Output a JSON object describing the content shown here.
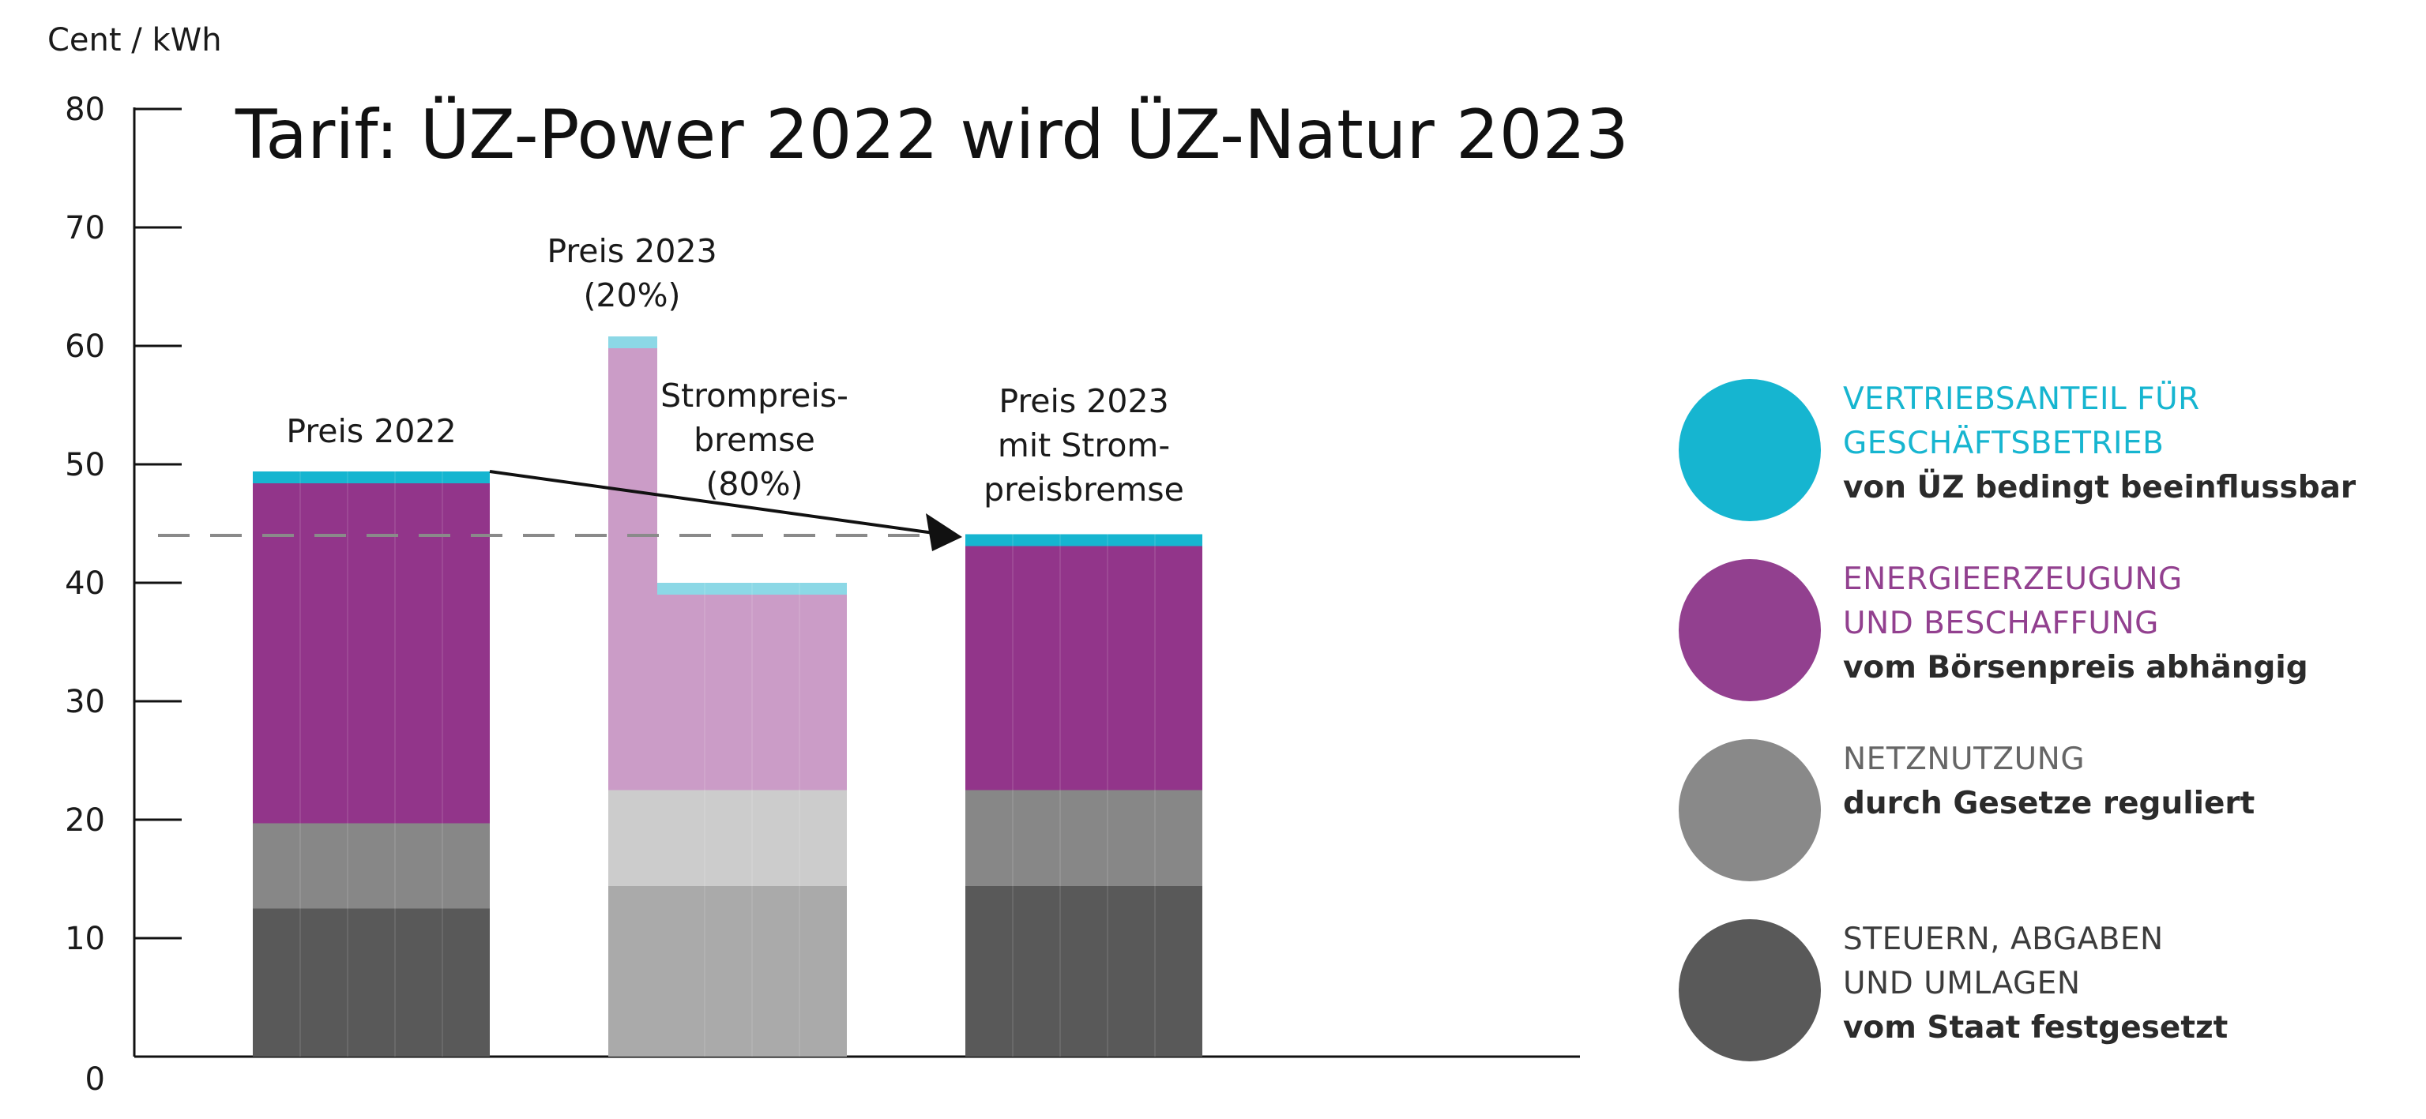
{
  "chart_data": {
    "type": "bar",
    "title": "Tarif: ÜZ-Power 2022 wird ÜZ-Natur  2023",
    "ylabel": "Cent / kWh",
    "ylim": [
      0,
      80
    ],
    "yticks": [
      "0",
      "10",
      "20",
      "30",
      "40",
      "50",
      "60",
      "70",
      "80"
    ],
    "reference_line": {
      "y": 44,
      "style": "dashed"
    },
    "categories": [
      "Preis 2022",
      "Preis 2023 (20%)",
      "Strompreisbremse (80%)",
      "Preis 2023 mit Strompreisbremse"
    ],
    "annotations": [
      {
        "lines": [
          "Preis 2022"
        ]
      },
      {
        "lines": [
          "Preis 2023",
          "(20%)"
        ]
      },
      {
        "lines": [
          "Strompreis-",
          "bremse",
          "(80%)"
        ]
      },
      {
        "lines": [
          "Preis 2023",
          "mit Strom-",
          "preisbremse"
        ]
      }
    ],
    "series": [
      {
        "name": "STEUERN, ABGABEN UND UMLAGEN",
        "values": [
          12.5,
          14.4,
          14.4,
          14.4
        ],
        "colors": [
          "#595959",
          "#aaaaaa",
          "#aaaaaa",
          "#595959"
        ]
      },
      {
        "name": "NETZNUTZUNG",
        "values": [
          7.2,
          8.1,
          8.1,
          8.1
        ],
        "colors": [
          "#878787",
          "#cccccc",
          "#cccccc",
          "#878787"
        ]
      },
      {
        "name": "ENERGIEERZEUGUNG UND BESCHAFFUNG",
        "values": [
          28.7,
          37.3,
          16.5,
          20.6
        ],
        "colors": [
          "#92358a",
          "#cb9cc7",
          "#cb9cc7",
          "#92358a"
        ]
      },
      {
        "name": "VERTRIEBSANTEIL FÜR GESCHÄFTSBETRIEB",
        "values": [
          1.0,
          1.0,
          1.0,
          1.0
        ],
        "colors": [
          "#16b5d0",
          "#8cd8e6",
          "#8cd8e6",
          "#16b5d0"
        ]
      }
    ],
    "arrow": {
      "from": "Preis 2022",
      "to": "Preis 2023 mit Strompreisbremse"
    },
    "legend_position": "right"
  },
  "legend": [
    {
      "head_lines": [
        "VERTRIEBSANTEIL FÜR",
        "GESCHÄFTSBETRIEB"
      ],
      "sub": "von ÜZ bedingt beeinflussbar",
      "color": "#16b5d0",
      "text_color": "#16b5d0"
    },
    {
      "head_lines": [
        "ENERGIEERZEUGUNG",
        "UND BESCHAFFUNG"
      ],
      "sub": "vom Börsenpreis  abhängig",
      "color": "#92408f",
      "text_color": "#92408f"
    },
    {
      "head_lines": [
        "NETZNUTZUNG"
      ],
      "sub": "durch Gesetze reguliert",
      "color": "#898989",
      "text_color": "#666666"
    },
    {
      "head_lines": [
        "STEUERN, ABGABEN",
        "UND UMLAGEN"
      ],
      "sub": "vom Staat festgesetzt",
      "color": "#595959",
      "text_color": "#3c3c3c"
    }
  ]
}
